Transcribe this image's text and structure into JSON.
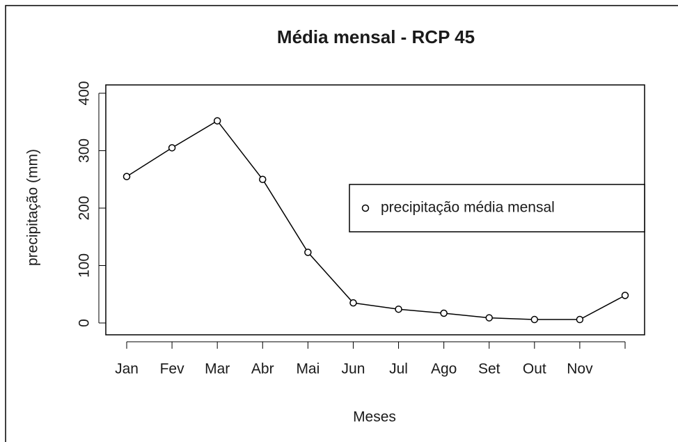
{
  "chart_data": {
    "type": "line",
    "title": "Média mensal - RCP 45",
    "x_label": "Meses",
    "y_label": "precipitação (mm)",
    "categories": [
      "Jan",
      "Fev",
      "Mar",
      "Abr",
      "Mai",
      "Jun",
      "Jul",
      "Ago",
      "Set",
      "Out",
      "Nov",
      null
    ],
    "series": [
      {
        "name": "precipitação média mensal",
        "color": "#000000",
        "values": [
          255,
          305,
          352,
          250,
          123,
          35,
          24,
          17,
          9,
          6,
          6,
          48
        ]
      }
    ],
    "ylim": [
      -20.6,
      414.5
    ],
    "yticks": [
      0,
      100,
      200,
      300,
      400
    ],
    "grid": false,
    "legend": "right"
  }
}
